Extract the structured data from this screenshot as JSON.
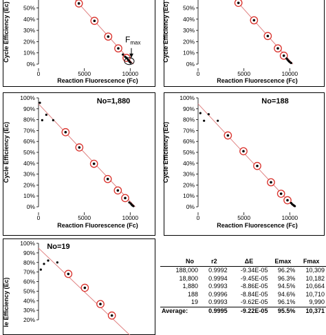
{
  "axis": {
    "x_title": "Reaction Fluorescence (Fc)",
    "y_title": "Cycle Efficiency (Ec)",
    "y_title_cut": "le Efficiency (Ec)"
  },
  "colors": {
    "fit_line": "#e08080",
    "circle": "#d9302a",
    "point": "#000000"
  },
  "chart_data": [
    {
      "type": "scatter",
      "title": "",
      "xlabel": "Reaction Fluorescence (Fc)",
      "ylabel": "Cycle Efficiency (Ec)",
      "xlim": [
        0,
        12000
      ],
      "ylim": [
        0,
        1.0
      ],
      "x_ticks": [
        "0",
        "5000",
        "10000"
      ],
      "y_ticks": [
        "0%",
        "10%",
        "20%",
        "30%",
        "40%",
        "50%"
      ],
      "annotation": {
        "text": "F",
        "subscript": "max",
        "x": 9900,
        "y": 0.02
      },
      "fit_line": [
        [
          0,
          0.935
        ],
        [
          10350,
          0.0
        ]
      ],
      "circled_points": [
        [
          4400,
          0.54
        ],
        [
          6100,
          0.385
        ],
        [
          7600,
          0.245
        ],
        [
          8700,
          0.14
        ],
        [
          9600,
          0.055
        ]
      ],
      "dots": [
        [
          9200,
          0.085
        ],
        [
          9450,
          0.065
        ],
        [
          9750,
          0.04
        ],
        [
          9850,
          0.03
        ],
        [
          9950,
          0.02
        ],
        [
          10050,
          0.012
        ]
      ]
    },
    {
      "type": "scatter",
      "title": "",
      "xlabel": "Reaction Fluorescence (Fc)",
      "ylabel": "Cycle Efficiency (Ec)",
      "xlim": [
        0,
        12000
      ],
      "ylim": [
        0,
        1.0
      ],
      "x_ticks": [
        "0",
        "5000",
        "10000"
      ],
      "y_ticks": [
        "0%",
        "10%",
        "20%",
        "30%",
        "40%",
        "50%"
      ],
      "fit_line": [
        [
          0,
          0.945
        ],
        [
          10350,
          0.0
        ]
      ],
      "circled_points": [
        [
          4400,
          0.545
        ],
        [
          6100,
          0.39
        ],
        [
          7600,
          0.25
        ],
        [
          8700,
          0.14
        ],
        [
          9350,
          0.075
        ]
      ],
      "dots": [
        [
          9650,
          0.05
        ],
        [
          9750,
          0.04
        ],
        [
          9850,
          0.03
        ],
        [
          9950,
          0.022
        ],
        [
          10050,
          0.015
        ],
        [
          10150,
          0.01
        ]
      ]
    },
    {
      "type": "scatter",
      "title": "No=1,880",
      "xlabel": "Reaction Fluorescence (Fc)",
      "ylabel": "Cycle Efficiency (Ec)",
      "xlim": [
        0,
        12000
      ],
      "ylim": [
        0,
        1.0
      ],
      "x_ticks": [
        "0",
        "5000",
        "10000"
      ],
      "y_ticks": [
        "0%",
        "10%",
        "20%",
        "30%",
        "40%",
        "50%",
        "60%",
        "70%",
        "80%",
        "90%",
        "100%"
      ],
      "fit_line": [
        [
          0,
          0.945
        ],
        [
          10550,
          0.0
        ]
      ],
      "circled_points": [
        [
          2950,
          0.685
        ],
        [
          4450,
          0.545
        ],
        [
          6050,
          0.395
        ],
        [
          7550,
          0.255
        ],
        [
          8650,
          0.15
        ],
        [
          9450,
          0.08
        ]
      ],
      "dots": [
        [
          150,
          0.955
        ],
        [
          400,
          0.795
        ],
        [
          850,
          0.845
        ],
        [
          1600,
          0.795
        ],
        [
          9900,
          0.04
        ],
        [
          10050,
          0.03
        ],
        [
          10150,
          0.02
        ],
        [
          10250,
          0.012
        ],
        [
          10350,
          0.006
        ]
      ]
    },
    {
      "type": "scatter",
      "title": "No=188",
      "xlabel": "Reaction Fluorescence (Fc)",
      "ylabel": "Cycle Efficiency (Ec)",
      "xlim": [
        0,
        12000
      ],
      "ylim": [
        0,
        1.0
      ],
      "x_ticks": [
        "0",
        "5000",
        "10000"
      ],
      "y_ticks": [
        "0%",
        "10%",
        "20%",
        "30%",
        "40%",
        "50%",
        "60%",
        "70%",
        "80%",
        "90%",
        "100%"
      ],
      "fit_line": [
        [
          0,
          0.945
        ],
        [
          10450,
          0.0
        ]
      ],
      "circled_points": [
        [
          3250,
          0.655
        ],
        [
          4950,
          0.51
        ],
        [
          6450,
          0.375
        ],
        [
          7950,
          0.225
        ],
        [
          9050,
          0.12
        ],
        [
          9750,
          0.06
        ]
      ],
      "dots": [
        [
          250,
          0.86
        ],
        [
          650,
          0.79
        ],
        [
          1150,
          0.85
        ],
        [
          2150,
          0.79
        ],
        [
          10150,
          0.035
        ],
        [
          10250,
          0.025
        ],
        [
          10350,
          0.018
        ],
        [
          10450,
          0.012
        ],
        [
          10550,
          0.006
        ]
      ]
    },
    {
      "type": "scatter",
      "title": "No=19",
      "xlabel": "",
      "ylabel": "Cycle Efficiency (Ec)",
      "xlim": [
        0,
        12000
      ],
      "ylim": [
        0.2,
        1.0
      ],
      "x_ticks": [],
      "y_ticks": [
        "20%",
        "30%",
        "40%",
        "50%",
        "60%",
        "70%",
        "80%",
        "90%",
        "100%"
      ],
      "fit_line": [
        [
          0,
          0.95
        ],
        [
          10400,
          0.0
        ]
      ],
      "circled_points": [
        [
          3250,
          0.68
        ],
        [
          5050,
          0.535
        ],
        [
          6750,
          0.365
        ],
        [
          8000,
          0.245
        ]
      ],
      "dots": [
        [
          250,
          0.725
        ],
        [
          600,
          0.785
        ],
        [
          1050,
          0.82
        ],
        [
          2050,
          0.8
        ]
      ]
    }
  ],
  "table": {
    "headers": [
      "No",
      "r2",
      "ΔE",
      "Emax",
      "Fmax"
    ],
    "rows": [
      [
        "188,000",
        "0.9992",
        "-9.34E-05",
        "96.2%",
        "10,309"
      ],
      [
        "18,800",
        "0.9994",
        "-9.45E-05",
        "96.3%",
        "10,182"
      ],
      [
        "1,880",
        "0.9993",
        "-8.86E-05",
        "94.5%",
        "10,664"
      ],
      [
        "188",
        "0.9996",
        "-8.84E-05",
        "94.6%",
        "10,710"
      ],
      [
        "19",
        "0.9993",
        "-9.62E-05",
        "96.1%",
        "9,990"
      ]
    ],
    "average": [
      "Average:",
      "0.9995",
      "-9.22E-05",
      "95.5%",
      "10,371"
    ]
  }
}
